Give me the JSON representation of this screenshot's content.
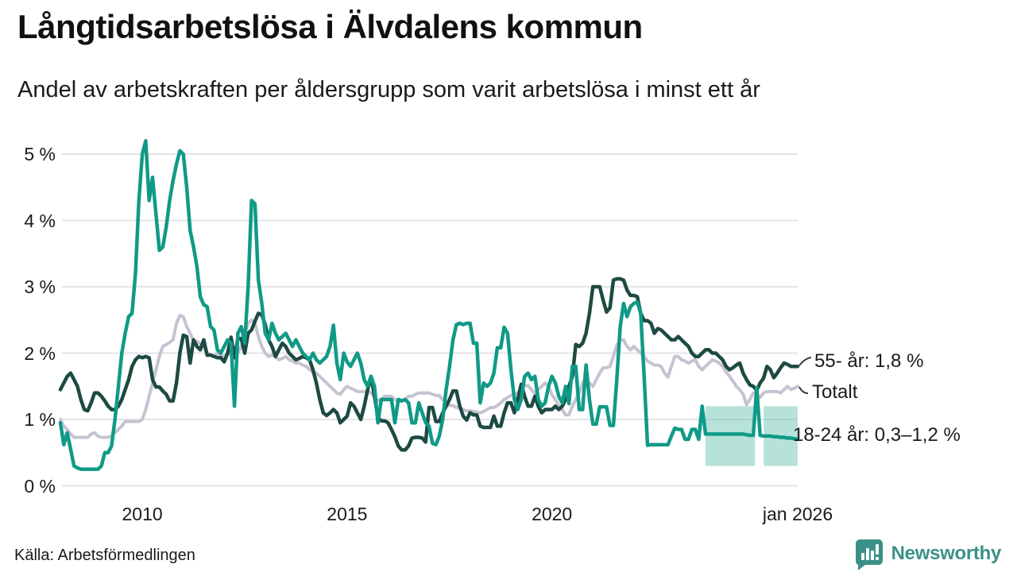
{
  "header": {
    "title": "Långtidsarbetslösa i Älvdalens kommun",
    "subtitle": "Andel av arbetskraften per åldersgrupp som varit arbetslösa i minst ett år"
  },
  "footer": {
    "source": "Källa: Arbetsförmedlingen",
    "brand": "Newsworthy"
  },
  "colors": {
    "teal": "#0f9a87",
    "dark_green": "#1d4a42",
    "grey": "#c6c3d1",
    "band": "#6ec6b5",
    "grid": "#e4e4e8",
    "text": "#1a1a1a",
    "brand_teal": "#3b9187"
  },
  "chart_data": {
    "type": "line",
    "unit": "%",
    "title": "Långtidsarbetslösa i Älvdalens kommun",
    "xlabel": "",
    "ylabel": "",
    "xlim": [
      2008.0,
      2026.08
    ],
    "ylim": [
      0,
      5.45
    ],
    "grid": "horizontal",
    "x_start_year": 2008.0,
    "x_step_months": 1,
    "y_ticks": [
      {
        "value": 0,
        "label": "0 %"
      },
      {
        "value": 1,
        "label": "1 %"
      },
      {
        "value": 2,
        "label": "2 %"
      },
      {
        "value": 3,
        "label": "3 %"
      },
      {
        "value": 4,
        "label": "4 %"
      },
      {
        "value": 5,
        "label": "5 %"
      }
    ],
    "x_ticks": [
      {
        "year": 2010,
        "label": "2010"
      },
      {
        "year": 2015,
        "label": "2015"
      },
      {
        "year": 2020,
        "label": "2020"
      },
      {
        "year": 2026,
        "label": "jan 2026"
      }
    ],
    "series": [
      {
        "id": "total",
        "name": "Totalt",
        "label": "Totalt",
        "color_key": "grey",
        "values": [
          1.0,
          0.9,
          0.85,
          0.78,
          0.73,
          0.73,
          0.73,
          0.73,
          0.73,
          0.78,
          0.8,
          0.75,
          0.73,
          0.73,
          0.73,
          0.75,
          0.8,
          0.85,
          0.9,
          0.97,
          0.97,
          0.97,
          0.97,
          0.97,
          1.0,
          1.15,
          1.35,
          1.55,
          1.75,
          1.95,
          2.1,
          2.13,
          2.16,
          2.2,
          2.45,
          2.57,
          2.55,
          2.4,
          2.3,
          2.18,
          2.18,
          2.14,
          2.1,
          2.0,
          1.97,
          1.95,
          2.0,
          1.97,
          1.95,
          2.0,
          1.97,
          1.95,
          2.0,
          2.1,
          2.3,
          2.45,
          2.5,
          2.45,
          2.25,
          2.1,
          2.0,
          1.95,
          1.97,
          1.95,
          1.9,
          1.92,
          1.95,
          1.9,
          1.88,
          1.85,
          1.85,
          1.82,
          1.8,
          1.75,
          1.72,
          1.7,
          1.65,
          1.6,
          1.55,
          1.5,
          1.45,
          1.4,
          1.38,
          1.45,
          1.5,
          1.47,
          1.45,
          1.42,
          1.42,
          1.42,
          1.42,
          1.4,
          1.35,
          1.28,
          1.3,
          1.35,
          1.35,
          1.35,
          1.3,
          1.28,
          1.28,
          1.3,
          1.35,
          1.35,
          1.38,
          1.4,
          1.4,
          1.4,
          1.4,
          1.38,
          1.36,
          1.36,
          1.3,
          1.25,
          1.21,
          1.21,
          1.18,
          1.18,
          1.15,
          1.13,
          1.13,
          1.12,
          1.11,
          1.1,
          1.12,
          1.15,
          1.18,
          1.18,
          1.21,
          1.25,
          1.3,
          1.33,
          1.36,
          1.38,
          1.4,
          1.47,
          1.51,
          1.51,
          1.45,
          1.39,
          1.45,
          1.5,
          1.55,
          1.5,
          1.37,
          1.3,
          1.21,
          1.15,
          1.07,
          1.07,
          1.2,
          1.3,
          1.4,
          1.55,
          1.64,
          1.55,
          1.5,
          1.6,
          1.7,
          1.78,
          1.78,
          1.8,
          1.95,
          2.12,
          2.2,
          2.2,
          2.1,
          2.05,
          2.1,
          2.05,
          2.0,
          1.95,
          1.88,
          1.85,
          1.82,
          1.82,
          1.8,
          1.7,
          1.64,
          1.8,
          1.95,
          1.95,
          1.9,
          1.88,
          1.85,
          1.88,
          1.9,
          1.8,
          1.75,
          1.8,
          1.85,
          1.9,
          1.88,
          1.85,
          1.8,
          1.72,
          1.65,
          1.58,
          1.5,
          1.45,
          1.38,
          1.22,
          1.3,
          1.4,
          1.4,
          1.33,
          1.4,
          1.42,
          1.42,
          1.42,
          1.42,
          1.4,
          1.45,
          1.5,
          1.45,
          1.47,
          1.5
        ]
      },
      {
        "id": "55plus",
        "name": "55- år",
        "label": "55- år: 1,8 %",
        "color_key": "dark_green",
        "values": [
          1.45,
          1.55,
          1.65,
          1.7,
          1.6,
          1.5,
          1.3,
          1.15,
          1.13,
          1.25,
          1.4,
          1.4,
          1.35,
          1.28,
          1.2,
          1.15,
          1.15,
          1.2,
          1.3,
          1.45,
          1.6,
          1.8,
          1.9,
          1.95,
          1.93,
          1.95,
          1.93,
          1.6,
          1.49,
          1.49,
          1.43,
          1.38,
          1.28,
          1.28,
          1.55,
          2.0,
          2.27,
          2.25,
          1.85,
          2.2,
          2.1,
          2.05,
          2.2,
          1.97,
          1.97,
          1.95,
          1.93,
          1.93,
          1.87,
          2.0,
          2.24,
          1.93,
          2.22,
          2.22,
          2.0,
          2.3,
          2.35,
          2.48,
          2.6,
          2.58,
          2.43,
          2.2,
          2.1,
          1.95,
          2.05,
          2.15,
          2.1,
          2.0,
          1.95,
          1.9,
          1.92,
          1.95,
          1.93,
          1.9,
          1.75,
          1.55,
          1.3,
          1.1,
          1.06,
          1.1,
          1.15,
          1.1,
          0.95,
          1.0,
          1.05,
          1.25,
          1.2,
          1.1,
          1.0,
          1.2,
          1.45,
          1.65,
          1.35,
          1.03,
          0.98,
          0.98,
          0.95,
          0.85,
          0.74,
          0.6,
          0.54,
          0.54,
          0.6,
          0.72,
          0.73,
          0.73,
          0.72,
          0.66,
          1.18,
          1.18,
          0.97,
          0.97,
          1.1,
          1.2,
          1.3,
          1.43,
          1.43,
          1.2,
          1.05,
          0.99,
          1.1,
          1.07,
          1.07,
          0.9,
          0.88,
          0.88,
          0.88,
          1.05,
          0.9,
          0.9,
          1.1,
          1.25,
          1.25,
          1.1,
          1.31,
          1.53,
          1.35,
          1.2,
          1.2,
          1.35,
          1.2,
          1.1,
          1.15,
          1.15,
          1.15,
          1.2,
          1.15,
          1.2,
          1.3,
          1.5,
          1.65,
          2.13,
          2.1,
          2.15,
          2.3,
          2.6,
          3.0,
          3.0,
          3.0,
          2.8,
          2.62,
          2.68,
          3.1,
          3.12,
          3.12,
          3.1,
          2.95,
          2.87,
          2.87,
          2.85,
          2.6,
          2.49,
          2.49,
          2.45,
          2.3,
          2.37,
          2.35,
          2.3,
          2.25,
          2.2,
          2.2,
          2.25,
          2.2,
          2.15,
          2.1,
          2.0,
          1.95,
          1.95,
          2.0,
          2.05,
          2.05,
          2.0,
          2.0,
          1.95,
          1.9,
          1.8,
          1.75,
          1.78,
          1.82,
          1.85,
          1.7,
          1.6,
          1.52,
          1.5,
          1.44,
          1.55,
          1.62,
          1.8,
          1.75,
          1.63,
          1.7,
          1.78,
          1.85,
          1.83,
          1.8,
          1.8,
          1.8
        ]
      },
      {
        "id": "youth",
        "name": "18-24 år",
        "label": "18-24 år: 0,3–1,2 %",
        "color_key": "teal",
        "values": [
          0.95,
          0.62,
          0.8,
          0.55,
          0.3,
          0.27,
          0.25,
          0.25,
          0.25,
          0.25,
          0.25,
          0.25,
          0.3,
          0.5,
          0.5,
          0.6,
          1.0,
          1.5,
          2.0,
          2.3,
          2.55,
          2.6,
          3.2,
          4.3,
          5.0,
          5.2,
          4.3,
          4.65,
          4.1,
          3.55,
          3.6,
          3.9,
          4.3,
          4.6,
          4.85,
          5.05,
          5.0,
          4.5,
          3.85,
          3.6,
          3.3,
          2.85,
          2.73,
          2.7,
          2.4,
          2.35,
          2.05,
          2.0,
          2.1,
          2.2,
          2.15,
          1.2,
          2.3,
          2.4,
          2.15,
          3.0,
          4.3,
          4.25,
          3.1,
          2.75,
          2.3,
          2.2,
          2.45,
          2.3,
          2.2,
          2.25,
          2.3,
          2.2,
          2.1,
          2.2,
          2.1,
          2.0,
          1.95,
          1.9,
          2.0,
          1.9,
          1.85,
          1.9,
          1.95,
          2.1,
          2.42,
          1.85,
          1.6,
          2.0,
          1.87,
          1.8,
          1.9,
          2.0,
          1.85,
          1.6,
          1.5,
          1.65,
          1.5,
          0.95,
          1.3,
          1.3,
          1.3,
          1.3,
          0.95,
          1.3,
          1.28,
          1.3,
          1.25,
          0.95,
          0.95,
          1.25,
          1.1,
          0.95,
          0.9,
          0.64,
          0.62,
          0.75,
          1.0,
          1.45,
          1.8,
          2.2,
          2.43,
          2.45,
          2.43,
          2.45,
          2.45,
          2.15,
          2.15,
          1.25,
          1.55,
          1.5,
          1.55,
          1.7,
          2.08,
          2.08,
          2.39,
          2.3,
          1.75,
          1.3,
          1.15,
          1.3,
          1.65,
          1.7,
          1.6,
          1.65,
          1.3,
          1.2,
          1.25,
          1.5,
          1.65,
          1.55,
          1.35,
          1.25,
          1.5,
          1.24,
          1.8,
          1.8,
          1.15,
          1.15,
          1.82,
          1.3,
          0.93,
          0.93,
          1.19,
          1.19,
          1.19,
          0.91,
          0.91,
          1.6,
          2.4,
          2.75,
          2.55,
          2.7,
          2.75,
          2.77,
          2.6,
          1.65,
          0.61,
          0.62,
          0.62,
          0.62,
          0.62,
          0.62,
          0.62,
          0.75,
          0.87,
          0.85,
          0.85,
          0.7,
          0.7,
          0.85,
          0.85,
          0.7,
          1.2,
          0.78,
          0.78,
          0.78,
          0.78,
          0.78,
          0.78,
          0.78,
          0.78,
          0.78,
          0.78,
          0.78,
          0.78,
          0.77,
          0.76,
          0.76,
          1.48,
          0.76,
          0.75,
          0.75,
          0.75,
          0.74,
          0.74,
          0.73,
          0.73,
          0.72,
          0.72,
          0.71,
          0.7
        ]
      }
    ],
    "uncertainty_band": {
      "series": "youth",
      "color_key": "band",
      "low": 0.3,
      "high": 1.2,
      "segments": [
        [
          2023.75,
          2024.96
        ],
        [
          2025.17,
          2026.0
        ]
      ]
    },
    "legend_position": "right-of-line-labels"
  }
}
